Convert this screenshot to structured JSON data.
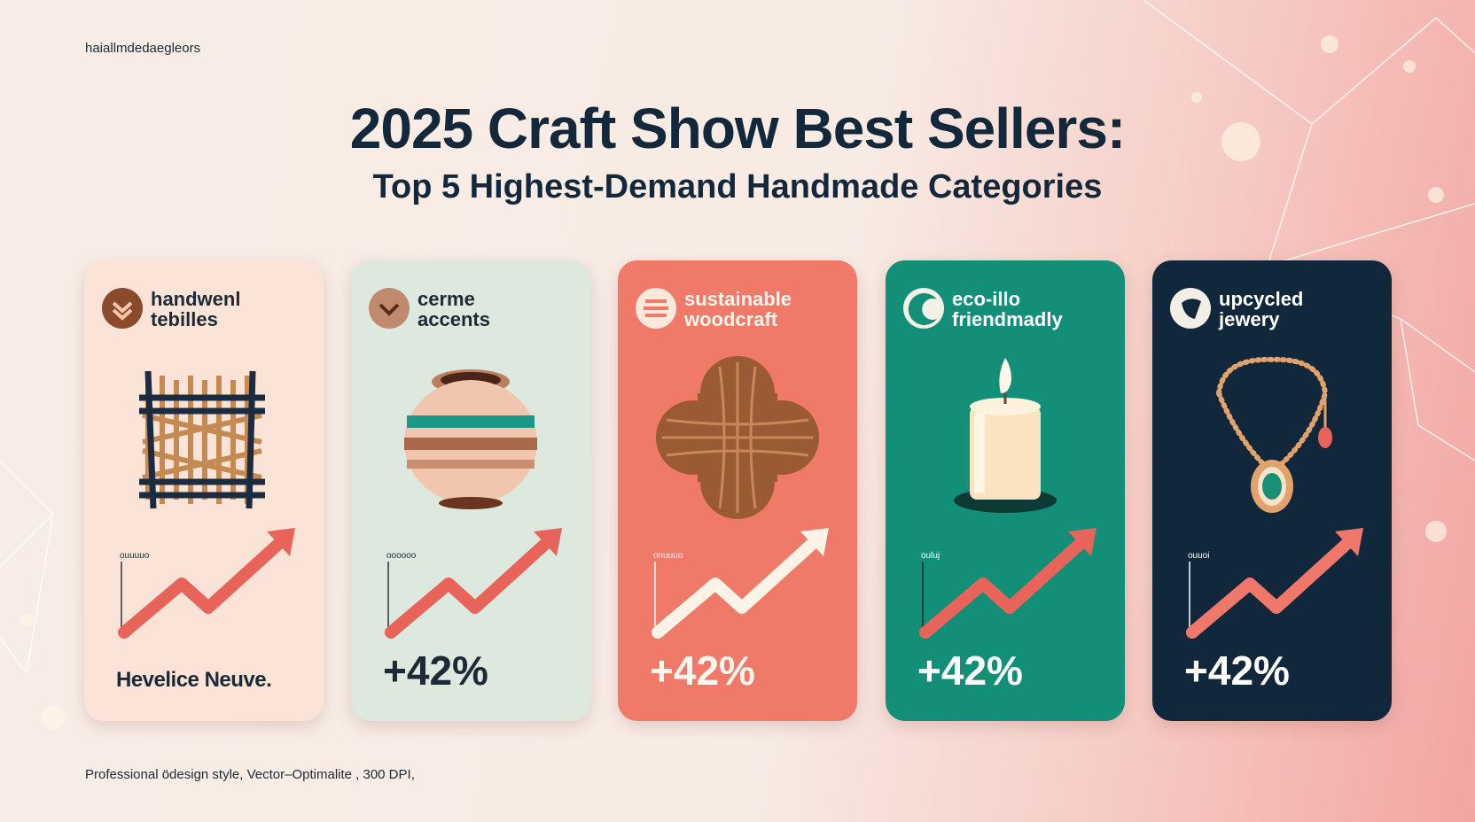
{
  "header": {
    "brand": "haiallmdedaegleors",
    "title": "2025 Craft Show Best Sellers:",
    "subtitle": "Top 5 Highest-Demand Handmade Categories"
  },
  "cards": [
    {
      "title": [
        "handwenl",
        "tebilles"
      ],
      "chart_label": "ouuuuo",
      "stat": "Hevelice Neuve."
    },
    {
      "title": [
        "cerme",
        "accents"
      ],
      "chart_label": "oooooo",
      "stat": "+42%"
    },
    {
      "title": [
        "sustainable",
        "woodcraft"
      ],
      "chart_label": "onuuuo",
      "stat": "+42%"
    },
    {
      "title": [
        "eco-illo",
        "friendmadly"
      ],
      "chart_label": "ouluj",
      "stat": "+42%"
    },
    {
      "title": [
        "upcycled",
        "jewery"
      ],
      "chart_label": "ouuoi",
      "stat": "+42%"
    }
  ],
  "footer": "Professional ödesign style, Vector–Optimalite , 300 DPI,"
}
